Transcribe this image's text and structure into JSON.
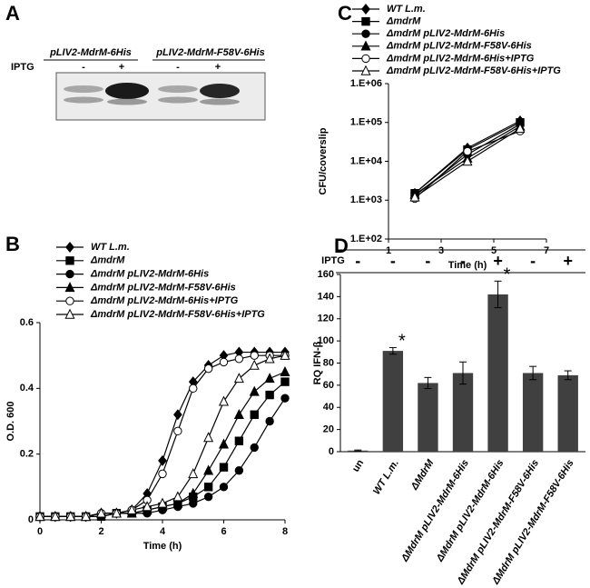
{
  "blot": {
    "panel": "A",
    "lane_groups": [
      "pLIV2-MdrM-6His",
      "pLIV2-MdrM-F58V-6His"
    ],
    "row_label": "IPTG",
    "iptg": [
      "-",
      "+",
      "-",
      "+"
    ]
  },
  "chart_data": [
    {
      "type": "line",
      "panel": "C",
      "xlabel": "Time (h)",
      "ylabel": "CFU/coverslip",
      "log_y": true,
      "x": [
        2,
        4,
        6
      ],
      "xlim": [
        1,
        7
      ],
      "xticks": [
        1,
        3,
        5,
        7
      ],
      "ylim": [
        100,
        1000000
      ],
      "yticks": [
        {
          "value": 100,
          "label": "1.E+02"
        },
        {
          "value": 1000,
          "label": "1.E+03"
        },
        {
          "value": 10000,
          "label": "1.E+04"
        },
        {
          "value": 100000,
          "label": "1.E+05"
        },
        {
          "value": 1000000,
          "label": "1.E+06"
        }
      ],
      "series": [
        {
          "name": "WT L.m.",
          "color": "#000000",
          "marker": "diamond",
          "values": [
            1500,
            22000,
            110000
          ]
        },
        {
          "name": "ΔmdrM",
          "color": "#000000",
          "marker": "square",
          "values": [
            1500,
            20000,
            100000
          ]
        },
        {
          "name": "ΔmdrM pLIV2-MdrM-6His",
          "color": "#000000",
          "marker": "circle",
          "values": [
            1300,
            15000,
            90000
          ]
        },
        {
          "name": "ΔmdrM pLIV2-MdrM-F58V-6His",
          "color": "#000000",
          "marker": "triangle",
          "values": [
            1400,
            12000,
            80000
          ]
        },
        {
          "name": "ΔmdrM pLIV2-MdrM-6His+IPTG",
          "color": "#000000",
          "marker": "circle-open",
          "values": [
            1100,
            18000,
            60000
          ]
        },
        {
          "name": "ΔmdrM pLIV2-MdrM-F58V-6His+IPTG",
          "color": "#000000",
          "marker": "triangle-open",
          "values": [
            1200,
            10000,
            70000
          ]
        }
      ]
    },
    {
      "type": "line",
      "panel": "B",
      "xlabel": "Time (h)",
      "ylabel": "O.D. 600",
      "log_y": false,
      "x": [
        0,
        0.5,
        1,
        1.5,
        2,
        2.5,
        3,
        3.5,
        4,
        4.5,
        5,
        5.5,
        6,
        6.5,
        7,
        7.5,
        8
      ],
      "xlim": [
        0,
        8
      ],
      "xticks": [
        0,
        2,
        4,
        6,
        8
      ],
      "ylim": [
        0,
        0.6
      ],
      "yticks": [
        0,
        0.2,
        0.4,
        0.6
      ],
      "series": [
        {
          "name": "WT L.m.",
          "color": "#000000",
          "marker": "diamond",
          "values": [
            0.01,
            0.01,
            0.01,
            0.01,
            0.02,
            0.02,
            0.03,
            0.08,
            0.18,
            0.32,
            0.42,
            0.47,
            0.5,
            0.51,
            0.51,
            0.51,
            0.51
          ]
        },
        {
          "name": "ΔmdrM",
          "color": "#000000",
          "marker": "square",
          "values": [
            0.01,
            0.01,
            0.01,
            0.01,
            0.01,
            0.02,
            0.02,
            0.03,
            0.04,
            0.05,
            0.07,
            0.1,
            0.16,
            0.24,
            0.32,
            0.38,
            0.42
          ]
        },
        {
          "name": "ΔmdrM pLIV2-MdrM-6His",
          "color": "#000000",
          "marker": "circle",
          "values": [
            0.01,
            0.01,
            0.01,
            0.01,
            0.01,
            0.02,
            0.02,
            0.02,
            0.03,
            0.04,
            0.05,
            0.07,
            0.1,
            0.15,
            0.22,
            0.3,
            0.37
          ]
        },
        {
          "name": "ΔmdrM pLIV2-MdrM-F58V-6His",
          "color": "#000000",
          "marker": "triangle",
          "values": [
            0.01,
            0.01,
            0.01,
            0.01,
            0.02,
            0.02,
            0.02,
            0.03,
            0.04,
            0.05,
            0.08,
            0.15,
            0.23,
            0.32,
            0.39,
            0.43,
            0.45
          ]
        },
        {
          "name": "ΔmdrM pLIV2-MdrM-6His+IPTG",
          "color": "#000000",
          "marker": "circle-open",
          "values": [
            0.01,
            0.01,
            0.01,
            0.01,
            0.02,
            0.02,
            0.03,
            0.06,
            0.14,
            0.27,
            0.4,
            0.46,
            0.48,
            0.49,
            0.5,
            0.5,
            0.5
          ]
        },
        {
          "name": "ΔmdrM pLIV2-MdrM-F58V-6His+IPTG",
          "color": "#000000",
          "marker": "triangle-open",
          "values": [
            0.01,
            0.01,
            0.01,
            0.01,
            0.02,
            0.02,
            0.03,
            0.04,
            0.05,
            0.07,
            0.14,
            0.25,
            0.36,
            0.43,
            0.47,
            0.49,
            0.5
          ]
        }
      ]
    },
    {
      "type": "bar",
      "panel": "D",
      "ylabel": "RQ IFN-β",
      "color": "#404040",
      "categories": [
        "un",
        "WT L.m.",
        "ΔMdrM",
        "ΔMdrM pLIV2-MdrM-6His",
        "ΔMdrM pLIV2-MdrM-6His",
        "ΔMdrM pLIV2-MdrM-F58V-6His",
        "ΔMdrM pLIV2-MdrM-F58V-6His"
      ],
      "values": [
        1,
        91,
        62,
        71,
        142,
        71,
        69
      ],
      "errors": [
        0.5,
        3,
        5,
        10,
        12,
        6,
        4
      ],
      "significance": [
        null,
        "*",
        null,
        null,
        "*",
        null,
        null
      ],
      "iptg_label": "IPTG",
      "iptg": [
        "-",
        "-",
        "-",
        "-",
        "+",
        "-",
        "+"
      ],
      "ylim": [
        0,
        160
      ],
      "yticks": [
        0,
        20,
        40,
        60,
        80,
        100,
        120,
        140,
        160
      ]
    }
  ]
}
